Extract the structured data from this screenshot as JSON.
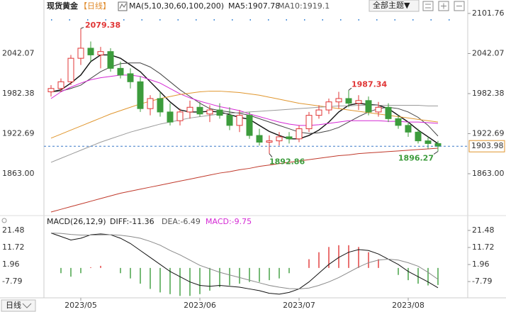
{
  "chart_data": [
    {
      "type": "candlestick",
      "title": "现货黄金",
      "period": "【日线】",
      "indicator": "MA(5,10,30,60,100,200)",
      "ma5_text": "MA5:1907.78",
      "ma10_text": "MA10:1919.1",
      "up_color": "#e03535",
      "down_color": "#3c9c3c",
      "categories": [
        null,
        null,
        null,
        "2023/05",
        null,
        null,
        null,
        null,
        null,
        null,
        null,
        null,
        null,
        null,
        null,
        "2023/06",
        null,
        null,
        null,
        null,
        null,
        null,
        null,
        null,
        null,
        "2023/07",
        null,
        null,
        null,
        null,
        null,
        null,
        null,
        null,
        null,
        null,
        "2023/08",
        null,
        null,
        null
      ],
      "candles": [
        [
          1985,
          1995,
          1978,
          1990
        ],
        [
          1990,
          2005,
          1985,
          2000
        ],
        [
          2000,
          2040,
          1995,
          2035
        ],
        [
          2035,
          2079.38,
          2025,
          2050
        ],
        [
          2050,
          2060,
          2030,
          2040
        ],
        [
          2040,
          2052,
          2020,
          2045
        ],
        [
          2045,
          2050,
          2015,
          2020
        ],
        [
          2020,
          2030,
          2005,
          2010
        ],
        [
          2012,
          2020,
          1990,
          2000
        ],
        [
          2000,
          2008,
          1955,
          1960
        ],
        [
          1960,
          1980,
          1950,
          1975
        ],
        [
          1975,
          1985,
          1948,
          1955
        ],
        [
          1955,
          1968,
          1935,
          1940
        ],
        [
          1942,
          1960,
          1935,
          1955
        ],
        [
          1955,
          1972,
          1945,
          1962
        ],
        [
          1962,
          1970,
          1948,
          1952
        ],
        [
          1952,
          1965,
          1940,
          1958
        ],
        [
          1958,
          1968,
          1945,
          1950
        ],
        [
          1950,
          1962,
          1928,
          1935
        ],
        [
          1935,
          1958,
          1925,
          1950
        ],
        [
          1950,
          1955,
          1915,
          1920
        ],
        [
          1920,
          1930,
          1905,
          1910
        ],
        [
          1910,
          1920,
          1892.86,
          1912
        ],
        [
          1912,
          1925,
          1905,
          1918
        ],
        [
          1918,
          1925,
          1908,
          1915
        ],
        [
          1915,
          1935,
          1910,
          1930
        ],
        [
          1930,
          1955,
          1925,
          1950
        ],
        [
          1950,
          1965,
          1945,
          1958
        ],
        [
          1958,
          1975,
          1952,
          1970
        ],
        [
          1970,
          1985,
          1960,
          1975
        ],
        [
          1975,
          1987.34,
          1962,
          1968
        ],
        [
          1968,
          1980,
          1958,
          1972
        ],
        [
          1972,
          1978,
          1950,
          1955
        ],
        [
          1955,
          1970,
          1948,
          1962
        ],
        [
          1962,
          1968,
          1940,
          1945
        ],
        [
          1945,
          1950,
          1930,
          1935
        ],
        [
          1935,
          1940,
          1918,
          1925
        ],
        [
          1925,
          1930,
          1908,
          1912
        ],
        [
          1912,
          1918,
          1900,
          1908
        ],
        [
          1908,
          1912,
          1896.27,
          1903.98
        ]
      ],
      "series": [
        {
          "color": "#111111",
          "width": 1.4,
          "values": [
            1985,
            1988,
            1998,
            2010,
            2030,
            2040,
            2040,
            2035,
            2025,
            2015,
            2000,
            1985,
            1970,
            1958,
            1955,
            1955,
            1956,
            1955,
            1951,
            1947,
            1944,
            1935,
            1926,
            1920,
            1915,
            1915,
            1920,
            1928,
            1940,
            1955,
            1965,
            1968,
            1966,
            1965,
            1960,
            1950,
            1940,
            1928,
            1918,
            1907.78
          ]
        },
        {
          "color": "#444444",
          "width": 1,
          "values": [
            1985,
            1986,
            1990,
            1995,
            2005,
            2015,
            2022,
            2027,
            2028,
            2028,
            2022,
            2012,
            2000,
            1988,
            1978,
            1968,
            1960,
            1957,
            1955,
            1953,
            1950,
            1945,
            1940,
            1935,
            1930,
            1925,
            1923,
            1924,
            1927,
            1932,
            1940,
            1948,
            1955,
            1960,
            1962,
            1960,
            1955,
            1947,
            1935,
            1919.1
          ]
        },
        {
          "color": "#d428d4",
          "width": 1,
          "values": [
            1975,
            1985,
            1992,
            1998,
            2003,
            2006,
            2008,
            2010,
            2010,
            2008,
            2003,
            1998,
            1990,
            1982,
            1976,
            1971,
            1967,
            1963,
            1960,
            1957,
            1952,
            1948,
            1944,
            1940,
            1937,
            1935,
            1935,
            1936,
            1938,
            1940,
            1942,
            1942,
            1942,
            1942,
            1941,
            1941,
            1940,
            1940,
            1939,
            1938
          ]
        },
        {
          "color": "#e0962e",
          "width": 1,
          "values": [
            1916,
            1922,
            1928,
            1934,
            1940,
            1946,
            1952,
            1957,
            1962,
            1967,
            1971,
            1975,
            1978,
            1981,
            1983,
            1985,
            1986,
            1986,
            1985,
            1984,
            1982,
            1980,
            1977,
            1974,
            1971,
            1968,
            1966,
            1964,
            1962,
            1960,
            1958,
            1956,
            1954,
            1952,
            1950,
            1948,
            1946,
            1944,
            1942,
            1940
          ]
        },
        {
          "color": "#9a9a9a",
          "width": 1,
          "values": [
            1880,
            1886,
            1892,
            1898,
            1904,
            1910,
            1915,
            1920,
            1925,
            1929,
            1933,
            1937,
            1940,
            1943,
            1946,
            1948,
            1950,
            1952,
            1953,
            1954,
            1955,
            1956,
            1957,
            1958,
            1959,
            1960,
            1961,
            1962,
            1963,
            1964,
            1964,
            1965,
            1965,
            1965,
            1965,
            1965,
            1965,
            1965,
            1964,
            1964
          ]
        },
        {
          "color": "#c0392b",
          "width": 1,
          "values": [
            1806,
            1810,
            1814,
            1818,
            1822,
            1826,
            1830,
            1834,
            1837,
            1840,
            1843,
            1846,
            1849,
            1852,
            1855,
            1858,
            1861,
            1864,
            1866,
            1869,
            1871,
            1874,
            1876,
            1878,
            1880,
            1882,
            1884,
            1886,
            1888,
            1890,
            1891,
            1893,
            1894,
            1895,
            1896,
            1897,
            1898,
            1899,
            1900,
            1901
          ]
        }
      ],
      "ylim": [
        1802.8,
        2121.8
      ],
      "yticks": [
        2101.76,
        2042.07,
        1982.38,
        1922.69,
        {
          "value": 1863,
          "label": "1863.00"
        }
      ]
    },
    {
      "type": "macd",
      "title": "MACD(26,12,9)",
      "diff_text": "DIFF:-11.36",
      "dea_text": "DEA:-6.49",
      "macd_text": "MACD:-9.75",
      "series": [
        {
          "color": "#111111",
          "values": [
            20,
            18,
            16,
            17,
            19,
            19.5,
            19,
            17,
            14,
            10,
            6,
            2,
            -2,
            -5,
            -8,
            -10,
            -10.5,
            -10,
            -10.5,
            -11,
            -12,
            -13,
            -14.5,
            -15,
            -14,
            -12,
            -8,
            -3,
            2,
            6,
            9,
            10.5,
            10,
            8,
            5,
            2,
            -2,
            -5,
            -8,
            -11.36
          ]
        },
        {
          "color": "#8a8a8a",
          "values": [
            20,
            19.8,
            19.2,
            18.8,
            18.8,
            18.9,
            19,
            18.7,
            18,
            17,
            15.2,
            13,
            10,
            7.5,
            4.5,
            1.5,
            -0.5,
            -2.5,
            -4,
            -5.5,
            -7,
            -8.5,
            -10,
            -11,
            -11.8,
            -12,
            -11.5,
            -10,
            -8,
            -5.5,
            -2.5,
            0.5,
            3,
            4.5,
            5,
            4.5,
            3,
            1,
            -2.5,
            -6.49
          ]
        }
      ],
      "histogram": [
        0,
        -3,
        -5,
        -3,
        0.4,
        1.2,
        0,
        -3,
        -6,
        -9,
        -12,
        -14,
        -15,
        -16,
        -16,
        -15,
        -13,
        -11,
        -10,
        -9,
        -8,
        -8,
        -7,
        -6,
        -3,
        0,
        5,
        9,
        12,
        13,
        13,
        12,
        9,
        5,
        0,
        -4,
        -7,
        -9,
        -10,
        -9.75
      ],
      "ylim": [
        -17.1,
        24.3
      ],
      "yticks": [
        21.48,
        11.72,
        1.96,
        -7.79
      ]
    }
  ],
  "toolbar": {
    "theme_button": "全部主题▼",
    "period_button": "日线"
  }
}
